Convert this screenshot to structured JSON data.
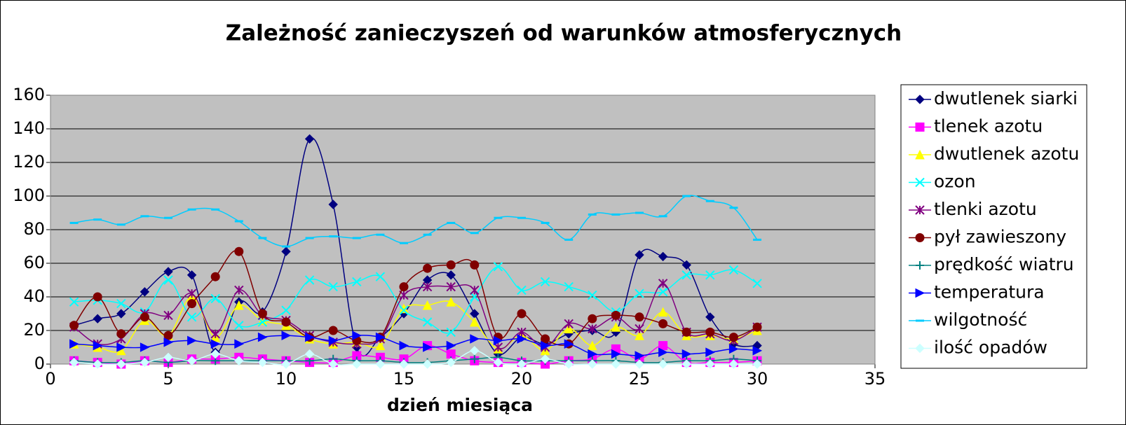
{
  "chart_data": {
    "type": "line",
    "title": "Zależność zanieczyszeń od warunków atmosferycznych",
    "x_label": "dzień miesiąca",
    "x": [
      1,
      2,
      3,
      4,
      5,
      6,
      7,
      8,
      9,
      10,
      11,
      12,
      13,
      14,
      15,
      16,
      17,
      18,
      19,
      20,
      21,
      22,
      23,
      24,
      25,
      26,
      27,
      28,
      29,
      30
    ],
    "xlim": [
      0,
      35
    ],
    "xticks": [
      0,
      5,
      10,
      15,
      20,
      25,
      30,
      35
    ],
    "ylim": [
      0,
      160
    ],
    "yticks": [
      0,
      20,
      40,
      60,
      80,
      100,
      120,
      140,
      160
    ],
    "grid": true,
    "smooth": true,
    "legend": "right",
    "series": [
      {
        "name": "dwutlenek siarki",
        "color": "#000080",
        "marker": "diamond",
        "values": [
          23,
          27,
          30,
          43,
          55,
          53,
          7,
          37,
          31,
          67,
          134,
          95,
          10,
          16,
          30,
          50,
          53,
          30,
          6,
          16,
          12,
          18,
          20,
          19,
          65,
          64,
          59,
          28,
          12,
          11
        ]
      },
      {
        "name": "tlenek azotu",
        "color": "#ff00ff",
        "marker": "square",
        "values": [
          2,
          1,
          0,
          2,
          1,
          3,
          3,
          4,
          3,
          2,
          1,
          1,
          5,
          4,
          3,
          11,
          6,
          2,
          1,
          1,
          0,
          2,
          3,
          9,
          3,
          11,
          1,
          1,
          1,
          2
        ]
      },
      {
        "name": "dwutlenek azotu",
        "color": "#ffff00",
        "marker": "triangle",
        "values": [
          12,
          10,
          8,
          26,
          17,
          40,
          16,
          35,
          26,
          23,
          15,
          12,
          13,
          11,
          33,
          35,
          37,
          25,
          9,
          17,
          8,
          21,
          11,
          22,
          17,
          31,
          17,
          17,
          15,
          20
        ]
      },
      {
        "name": "ozon",
        "color": "#00ffff",
        "marker": "x",
        "values": [
          37,
          38,
          36,
          31,
          50,
          28,
          39,
          23,
          25,
          32,
          50,
          46,
          49,
          52,
          32,
          25,
          19,
          40,
          58,
          44,
          49,
          46,
          41,
          31,
          42,
          43,
          53,
          53,
          56,
          48
        ]
      },
      {
        "name": "tlenki azotu",
        "color": "#800080",
        "marker": "star",
        "values": [
          22,
          12,
          15,
          30,
          29,
          42,
          18,
          44,
          29,
          26,
          17,
          13,
          12,
          15,
          41,
          46,
          46,
          44,
          10,
          19,
          10,
          24,
          21,
          28,
          21,
          48,
          19,
          18,
          14,
          22
        ]
      },
      {
        "name": "pył zawieszony",
        "color": "#800000",
        "marker": "circle",
        "values": [
          23,
          40,
          18,
          28,
          17,
          36,
          52,
          67,
          30,
          25,
          16,
          20,
          14,
          16,
          46,
          57,
          59,
          59,
          16,
          30,
          15,
          12,
          27,
          29,
          28,
          24,
          19,
          19,
          16,
          22
        ]
      },
      {
        "name": "prędkość wiatru",
        "color": "#008080",
        "marker": "plus",
        "values": [
          2,
          1,
          1,
          2,
          1,
          2,
          2,
          2,
          2,
          2,
          2,
          3,
          2,
          2,
          1,
          1,
          2,
          3,
          4,
          2,
          2,
          2,
          2,
          2,
          1,
          1,
          2,
          2,
          3,
          2
        ]
      },
      {
        "name": "temperatura",
        "color": "#0000ff",
        "marker": "triangle-right",
        "values": [
          12,
          11,
          10,
          10,
          13,
          14,
          12,
          12,
          16,
          17,
          16,
          14,
          17,
          16,
          11,
          10,
          11,
          15,
          14,
          15,
          11,
          12,
          6,
          6,
          5,
          7,
          6,
          7,
          9,
          8
        ]
      },
      {
        "name": "wilgotność",
        "color": "#00ccff",
        "marker": "dash",
        "values": [
          84,
          86,
          83,
          88,
          87,
          92,
          92,
          85,
          75,
          70,
          75,
          76,
          75,
          77,
          72,
          77,
          84,
          78,
          87,
          87,
          84,
          74,
          89,
          89,
          90,
          88,
          100,
          97,
          93,
          74
        ]
      },
      {
        "name": "ilość opadów",
        "color": "#ccffff",
        "marker": "diamond",
        "values": [
          1,
          0,
          0,
          1,
          4,
          2,
          6,
          2,
          1,
          0,
          6,
          0,
          0,
          0,
          0,
          0,
          1,
          8,
          1,
          0,
          3,
          0,
          0,
          0,
          0,
          0,
          0,
          0,
          0,
          0
        ]
      }
    ]
  }
}
